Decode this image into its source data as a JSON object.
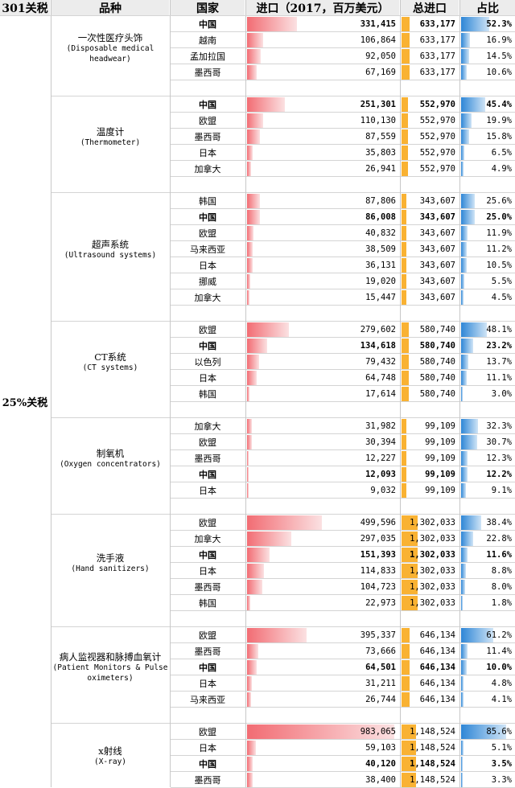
{
  "headers": {
    "tariff": "301关税",
    "product": "品种",
    "country": "国家",
    "imports": "进口（2017，百万美元）",
    "total": "总进口",
    "share": "占比"
  },
  "tariff_label": "25%关税",
  "groups": [
    {
      "name_zh": "一次性医疗头饰",
      "name_en": "(Disposable medical headwear)",
      "rows": [
        {
          "country": "中国",
          "imp": "331,415",
          "imp_v": 331415,
          "tot": "633,177",
          "pct": "52.3%",
          "pct_v": 52.3,
          "bold": true
        },
        {
          "country": "越南",
          "imp": "106,864",
          "imp_v": 106864,
          "tot": "633,177",
          "pct": "16.9%",
          "pct_v": 16.9
        },
        {
          "country": "孟加拉国",
          "imp": "92,050",
          "imp_v": 92050,
          "tot": "633,177",
          "pct": "14.5%",
          "pct_v": 14.5
        },
        {
          "country": "墨西哥",
          "imp": "67,169",
          "imp_v": 67169,
          "tot": "633,177",
          "pct": "10.6%",
          "pct_v": 10.6
        }
      ]
    },
    {
      "name_zh": "温度计",
      "name_en": "(Thermometer)",
      "rows": [
        {
          "country": "中国",
          "imp": "251,301",
          "imp_v": 251301,
          "tot": "552,970",
          "pct": "45.4%",
          "pct_v": 45.4,
          "bold": true
        },
        {
          "country": "欧盟",
          "imp": "110,130",
          "imp_v": 110130,
          "tot": "552,970",
          "pct": "19.9%",
          "pct_v": 19.9
        },
        {
          "country": "墨西哥",
          "imp": "87,559",
          "imp_v": 87559,
          "tot": "552,970",
          "pct": "15.8%",
          "pct_v": 15.8
        },
        {
          "country": "日本",
          "imp": "35,803",
          "imp_v": 35803,
          "tot": "552,970",
          "pct": "6.5%",
          "pct_v": 6.5
        },
        {
          "country": "加拿大",
          "imp": "26,941",
          "imp_v": 26941,
          "tot": "552,970",
          "pct": "4.9%",
          "pct_v": 4.9
        }
      ]
    },
    {
      "name_zh": "超声系统",
      "name_en": "(Ultrasound systems)",
      "rows": [
        {
          "country": "韩国",
          "imp": "87,806",
          "imp_v": 87806,
          "tot": "343,607",
          "pct": "25.6%",
          "pct_v": 25.6
        },
        {
          "country": "中国",
          "imp": "86,008",
          "imp_v": 86008,
          "tot": "343,607",
          "pct": "25.0%",
          "pct_v": 25.0,
          "bold": true
        },
        {
          "country": "欧盟",
          "imp": "40,832",
          "imp_v": 40832,
          "tot": "343,607",
          "pct": "11.9%",
          "pct_v": 11.9
        },
        {
          "country": "马来西亚",
          "imp": "38,509",
          "imp_v": 38509,
          "tot": "343,607",
          "pct": "11.2%",
          "pct_v": 11.2
        },
        {
          "country": "日本",
          "imp": "36,131",
          "imp_v": 36131,
          "tot": "343,607",
          "pct": "10.5%",
          "pct_v": 10.5
        },
        {
          "country": "挪威",
          "imp": "19,020",
          "imp_v": 19020,
          "tot": "343,607",
          "pct": "5.5%",
          "pct_v": 5.5
        },
        {
          "country": "加拿大",
          "imp": "15,447",
          "imp_v": 15447,
          "tot": "343,607",
          "pct": "4.5%",
          "pct_v": 4.5
        }
      ]
    },
    {
      "name_zh": "CT系统",
      "name_en": "(CT systems)",
      "rows": [
        {
          "country": "欧盟",
          "imp": "279,602",
          "imp_v": 279602,
          "tot": "580,740",
          "pct": "48.1%",
          "pct_v": 48.1
        },
        {
          "country": "中国",
          "imp": "134,618",
          "imp_v": 134618,
          "tot": "580,740",
          "pct": "23.2%",
          "pct_v": 23.2,
          "bold": true
        },
        {
          "country": "以色列",
          "imp": "79,432",
          "imp_v": 79432,
          "tot": "580,740",
          "pct": "13.7%",
          "pct_v": 13.7
        },
        {
          "country": "日本",
          "imp": "64,748",
          "imp_v": 64748,
          "tot": "580,740",
          "pct": "11.1%",
          "pct_v": 11.1
        },
        {
          "country": "韩国",
          "imp": "17,614",
          "imp_v": 17614,
          "tot": "580,740",
          "pct": "3.0%",
          "pct_v": 3.0
        }
      ]
    },
    {
      "name_zh": "制氧机",
      "name_en": "(Oxygen concentrators)",
      "rows": [
        {
          "country": "加拿大",
          "imp": "31,982",
          "imp_v": 31982,
          "tot": "99,109",
          "pct": "32.3%",
          "pct_v": 32.3
        },
        {
          "country": "欧盟",
          "imp": "30,394",
          "imp_v": 30394,
          "tot": "99,109",
          "pct": "30.7%",
          "pct_v": 30.7
        },
        {
          "country": "墨西哥",
          "imp": "12,227",
          "imp_v": 12227,
          "tot": "99,109",
          "pct": "12.3%",
          "pct_v": 12.3
        },
        {
          "country": "中国",
          "imp": "12,093",
          "imp_v": 12093,
          "tot": "99,109",
          "pct": "12.2%",
          "pct_v": 12.2,
          "bold": true
        },
        {
          "country": "日本",
          "imp": "9,032",
          "imp_v": 9032,
          "tot": "99,109",
          "pct": "9.1%",
          "pct_v": 9.1
        }
      ]
    },
    {
      "name_zh": "洗手液",
      "name_en": "(Hand sanitizers)",
      "rows": [
        {
          "country": "欧盟",
          "imp": "499,596",
          "imp_v": 499596,
          "tot": "1,302,033",
          "pct": "38.4%",
          "pct_v": 38.4
        },
        {
          "country": "加拿大",
          "imp": "297,035",
          "imp_v": 297035,
          "tot": "1,302,033",
          "pct": "22.8%",
          "pct_v": 22.8
        },
        {
          "country": "中国",
          "imp": "151,393",
          "imp_v": 151393,
          "tot": "1,302,033",
          "pct": "11.6%",
          "pct_v": 11.6,
          "bold": true
        },
        {
          "country": "日本",
          "imp": "114,833",
          "imp_v": 114833,
          "tot": "1,302,033",
          "pct": "8.8%",
          "pct_v": 8.8
        },
        {
          "country": "墨西哥",
          "imp": "104,723",
          "imp_v": 104723,
          "tot": "1,302,033",
          "pct": "8.0%",
          "pct_v": 8.0
        },
        {
          "country": "韩国",
          "imp": "22,973",
          "imp_v": 22973,
          "tot": "1,302,033",
          "pct": "1.8%",
          "pct_v": 1.8
        }
      ]
    },
    {
      "name_zh": "病人监视器和脉搏血氧计",
      "name_en": "(Patient Monitors & Pulse oximeters)",
      "rows": [
        {
          "country": "欧盟",
          "imp": "395,337",
          "imp_v": 395337,
          "tot": "646,134",
          "pct": "61.2%",
          "pct_v": 61.2
        },
        {
          "country": "墨西哥",
          "imp": "73,666",
          "imp_v": 73666,
          "tot": "646,134",
          "pct": "11.4%",
          "pct_v": 11.4
        },
        {
          "country": "中国",
          "imp": "64,501",
          "imp_v": 64501,
          "tot": "646,134",
          "pct": "10.0%",
          "pct_v": 10.0,
          "bold": true
        },
        {
          "country": "日本",
          "imp": "31,211",
          "imp_v": 31211,
          "tot": "646,134",
          "pct": "4.8%",
          "pct_v": 4.8
        },
        {
          "country": "马来西亚",
          "imp": "26,744",
          "imp_v": 26744,
          "tot": "646,134",
          "pct": "4.1%",
          "pct_v": 4.1
        }
      ]
    },
    {
      "name_zh": "x射线",
      "name_en": "(X-ray)",
      "rows": [
        {
          "country": "欧盟",
          "imp": "983,065",
          "imp_v": 983065,
          "tot": "1,148,524",
          "pct": "85.6%",
          "pct_v": 85.6
        },
        {
          "country": "日本",
          "imp": "59,103",
          "imp_v": 59103,
          "tot": "1,148,524",
          "pct": "5.1%",
          "pct_v": 5.1
        },
        {
          "country": "中国",
          "imp": "40,120",
          "imp_v": 40120,
          "tot": "1,148,524",
          "pct": "3.5%",
          "pct_v": 3.5,
          "bold": true
        },
        {
          "country": "墨西哥",
          "imp": "38,400",
          "imp_v": 38400,
          "tot": "1,148,524",
          "pct": "3.3%",
          "pct_v": 3.3
        }
      ]
    }
  ]
}
